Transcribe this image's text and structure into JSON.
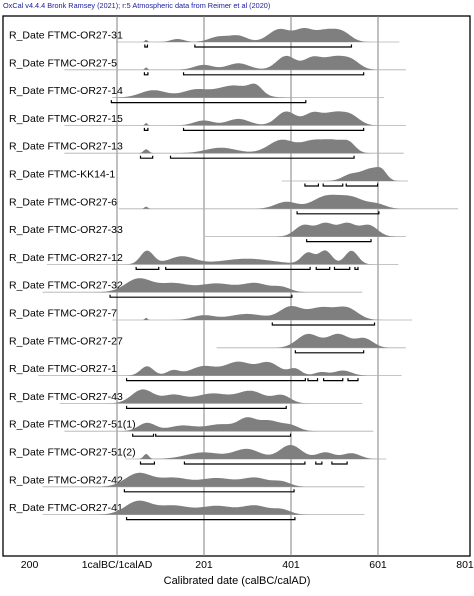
{
  "chart_data": {
    "type": "area",
    "subtype": "multiplot-posterior-distributions",
    "header": "OxCal v4.4.4 Bronk Ramsey (2021); r:5 Atmospheric data from Reimer et al (2020)",
    "xlabel": "Calibrated date (calBC/calAD)",
    "ylabel": "",
    "xlim": [
      -226,
      801
    ],
    "x_ticks": [
      -200,
      1,
      201,
      401,
      601,
      801
    ],
    "x_tick_labels": [
      "200",
      "1calBC/1calAD",
      "201",
      "401",
      "601",
      "801"
    ],
    "vertical_gridlines": [
      1,
      201,
      401,
      601
    ],
    "shape_color": "#7f7f7f",
    "line_color": "#000000",
    "grid_color": "#808080",
    "series": [
      {
        "name": "R_Date FTMC-OR27-31",
        "span": [
          2,
          650
        ],
        "peaks": [
          [
            68,
            3,
            0.15
          ],
          [
            140,
            15,
            0.2
          ],
          [
            235,
            22,
            0.35
          ],
          [
            280,
            20,
            0.4
          ],
          [
            375,
            25,
            0.85
          ],
          [
            430,
            20,
            0.75
          ],
          [
            480,
            25,
            0.75
          ],
          [
            520,
            20,
            0.55
          ]
        ],
        "ranges": [
          [
            65,
            71
          ],
          [
            180,
            540
          ]
        ]
      },
      {
        "name": "R_Date FTMC-OR27-5",
        "span": [
          -120,
          665
        ],
        "peaks": [
          [
            68,
            3,
            0.15
          ],
          [
            200,
            22,
            0.3
          ],
          [
            280,
            25,
            0.4
          ],
          [
            390,
            22,
            0.85
          ],
          [
            450,
            20,
            0.7
          ],
          [
            500,
            25,
            0.75
          ],
          [
            540,
            20,
            0.5
          ]
        ],
        "ranges": [
          [
            64,
            72
          ],
          [
            154,
            568
          ]
        ]
      },
      {
        "name": "R_Date FTMC-OR27-14",
        "span": [
          -10,
          615
        ],
        "peaks": [
          [
            85,
            30,
            0.55
          ],
          [
            180,
            30,
            0.55
          ],
          [
            270,
            40,
            0.9
          ],
          [
            320,
            15,
            0.6
          ]
        ],
        "ranges": [
          [
            -12,
            435
          ]
        ]
      },
      {
        "name": "R_Date FTMC-OR27-15",
        "span": [
          -120,
          665
        ],
        "peaks": [
          [
            68,
            3,
            0.15
          ],
          [
            200,
            22,
            0.3
          ],
          [
            280,
            25,
            0.4
          ],
          [
            390,
            22,
            0.85
          ],
          [
            450,
            20,
            0.7
          ],
          [
            500,
            25,
            0.75
          ],
          [
            540,
            20,
            0.5
          ]
        ],
        "ranges": [
          [
            64,
            72
          ],
          [
            154,
            568
          ]
        ]
      },
      {
        "name": "R_Date FTMC-OR27-13",
        "span": [
          -120,
          660
        ],
        "peaks": [
          [
            68,
            6,
            0.25
          ],
          [
            240,
            35,
            0.35
          ],
          [
            380,
            30,
            0.85
          ],
          [
            450,
            25,
            0.7
          ],
          [
            500,
            25,
            0.75
          ],
          [
            535,
            15,
            0.5
          ]
        ],
        "ranges": [
          [
            55,
            83
          ],
          [
            124,
            546
          ]
        ]
      },
      {
        "name": "R_Date FTMC-KK14-1",
        "span": [
          380,
          670
        ],
        "peaks": [
          [
            540,
            20,
            0.55
          ],
          [
            585,
            20,
            0.95
          ],
          [
            610,
            12,
            0.6
          ]
        ],
        "ranges": [
          [
            433,
            464
          ],
          [
            475,
            520
          ],
          [
            528,
            600
          ]
        ]
      },
      {
        "name": "R_Date FTMC-OR27-6",
        "span": [
          5,
          785
        ],
        "peaks": [
          [
            68,
            4,
            0.15
          ],
          [
            390,
            25,
            0.5
          ],
          [
            480,
            30,
            0.85
          ],
          [
            540,
            30,
            0.8
          ],
          [
            600,
            20,
            0.3
          ]
        ],
        "ranges": [
          [
            415,
            603
          ]
        ]
      },
      {
        "name": "R_Date FTMC-OR27-33",
        "span": [
          200,
          665
        ],
        "peaks": [
          [
            430,
            20,
            0.7
          ],
          [
            480,
            20,
            0.8
          ],
          [
            530,
            20,
            0.8
          ],
          [
            580,
            20,
            0.7
          ]
        ],
        "ranges": [
          [
            437,
            585
          ]
        ]
      },
      {
        "name": "R_Date FTMC-OR27-12",
        "span": [
          -160,
          648
        ],
        "peaks": [
          [
            70,
            15,
            0.6
          ],
          [
            150,
            30,
            0.35
          ],
          [
            300,
            60,
            0.25
          ],
          [
            440,
            15,
            0.5
          ],
          [
            480,
            15,
            0.6
          ],
          [
            540,
            15,
            0.6
          ]
        ],
        "ranges": [
          [
            45,
            97
          ],
          [
            113,
            445
          ],
          [
            459,
            490
          ],
          [
            501,
            536
          ],
          [
            548,
            555
          ]
        ]
      },
      {
        "name": "R_Date FTMC-OR27-32",
        "span": [
          -170,
          565
        ],
        "peaks": [
          [
            50,
            30,
            0.85
          ],
          [
            130,
            35,
            0.55
          ],
          [
            230,
            40,
            0.55
          ],
          [
            320,
            30,
            0.55
          ],
          [
            380,
            20,
            0.3
          ]
        ],
        "ranges": [
          [
            -15,
            403
          ]
        ]
      },
      {
        "name": "R_Date FTMC-OR27-7",
        "span": [
          -10,
          680
        ],
        "peaks": [
          [
            68,
            3,
            0.15
          ],
          [
            200,
            25,
            0.3
          ],
          [
            300,
            40,
            0.4
          ],
          [
            400,
            25,
            0.85
          ],
          [
            470,
            30,
            0.8
          ],
          [
            530,
            25,
            0.75
          ]
        ],
        "ranges": [
          [
            358,
            593
          ]
        ]
      },
      {
        "name": "R_Date FTMC-OR27-27",
        "span": [
          230,
          665
        ],
        "peaks": [
          [
            440,
            25,
            0.9
          ],
          [
            510,
            25,
            0.9
          ],
          [
            570,
            20,
            0.6
          ]
        ],
        "ranges": [
          [
            411,
            568
          ]
        ]
      },
      {
        "name": "R_Date FTMC-OR27-1",
        "span": [
          -180,
          655
        ],
        "peaks": [
          [
            70,
            15,
            0.55
          ],
          [
            130,
            15,
            0.3
          ],
          [
            200,
            30,
            0.55
          ],
          [
            280,
            30,
            0.8
          ],
          [
            350,
            25,
            0.75
          ],
          [
            410,
            15,
            0.4
          ],
          [
            470,
            15,
            0.2
          ],
          [
            520,
            20,
            0.3
          ]
        ],
        "ranges": [
          [
            23,
            434
          ],
          [
            440,
            462
          ],
          [
            476,
            520
          ],
          [
            532,
            555
          ]
        ]
      },
      {
        "name": "R_Date FTMC-OR27-43",
        "span": [
          -130,
          565
        ],
        "peaks": [
          [
            60,
            25,
            0.7
          ],
          [
            130,
            25,
            0.4
          ],
          [
            220,
            40,
            0.5
          ],
          [
            310,
            30,
            0.6
          ],
          [
            380,
            20,
            0.4
          ]
        ],
        "ranges": [
          [
            23,
            390
          ]
        ]
      },
      {
        "name": "R_Date FTMC-OR27-51(1)",
        "span": [
          -120,
          590
        ],
        "peaks": [
          [
            70,
            20,
            0.6
          ],
          [
            150,
            30,
            0.4
          ],
          [
            240,
            35,
            0.5
          ],
          [
            300,
            20,
            0.8
          ],
          [
            350,
            25,
            0.75
          ],
          [
            400,
            20,
            0.4
          ]
        ],
        "ranges": [
          [
            37,
            85
          ],
          [
            90,
            400
          ]
        ]
      },
      {
        "name": "R_Date FTMC-OR27-51(2)",
        "span": [
          20,
          620
        ],
        "peaks": [
          [
            68,
            6,
            0.3
          ],
          [
            200,
            40,
            0.4
          ],
          [
            300,
            30,
            0.6
          ],
          [
            400,
            25,
            0.85
          ],
          [
            480,
            20,
            0.4
          ],
          [
            540,
            20,
            0.35
          ]
        ],
        "ranges": [
          [
            55,
            87
          ],
          [
            156,
            433
          ],
          [
            458,
            472
          ],
          [
            495,
            530
          ]
        ]
      },
      {
        "name": "R_Date FTMC-OR27-42",
        "span": [
          -170,
          570
        ],
        "peaks": [
          [
            50,
            30,
            0.85
          ],
          [
            130,
            35,
            0.55
          ],
          [
            230,
            40,
            0.55
          ],
          [
            320,
            30,
            0.55
          ],
          [
            380,
            20,
            0.3
          ]
        ],
        "ranges": [
          [
            18,
            408
          ]
        ]
      },
      {
        "name": "R_Date FTMC-OR27-41",
        "span": [
          -170,
          570
        ],
        "peaks": [
          [
            50,
            30,
            0.85
          ],
          [
            130,
            35,
            0.55
          ],
          [
            230,
            40,
            0.55
          ],
          [
            320,
            30,
            0.55
          ],
          [
            380,
            20,
            0.3
          ]
        ],
        "ranges": [
          [
            23,
            410
          ]
        ]
      }
    ]
  }
}
